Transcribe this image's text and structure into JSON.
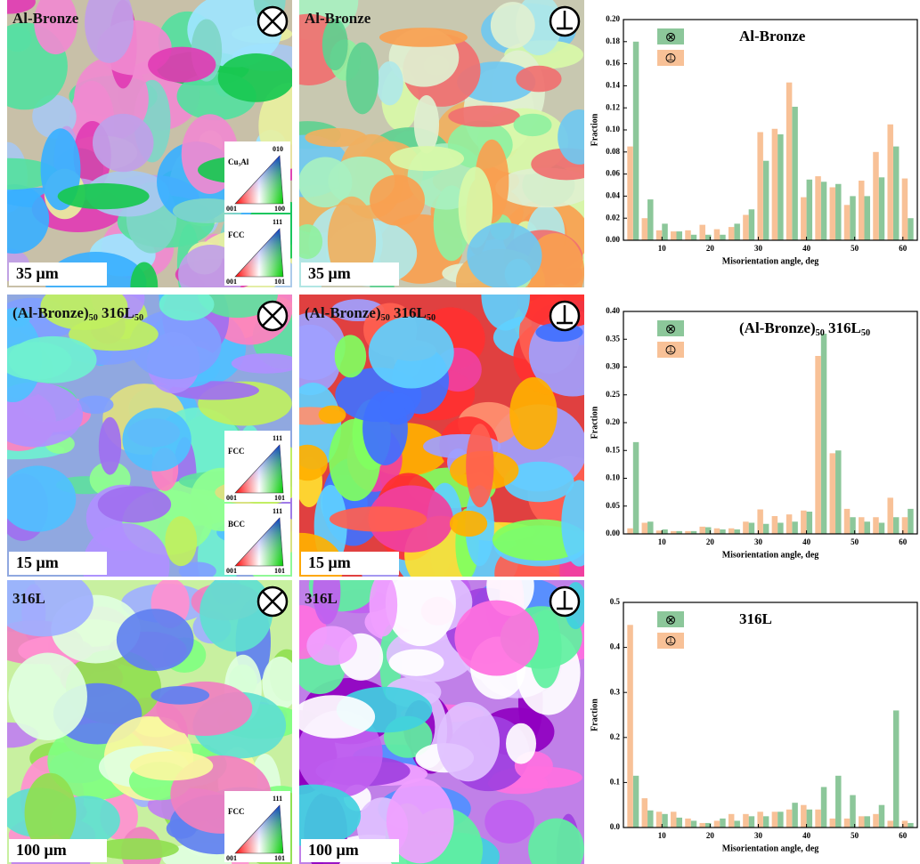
{
  "maps": [
    {
      "label": [
        "Al-Bronze"
      ],
      "scale": "35 μm",
      "keys": [
        {
          "name": [
            "Cu",
            "3",
            "Al"
          ],
          "corners": [
            "010",
            "001",
            "100"
          ]
        },
        {
          "name": [
            "FCC"
          ],
          "corners": [
            "111",
            "001",
            "101"
          ]
        }
      ]
    },
    {
      "label": [
        "Al-Bronze"
      ],
      "scale": "35 μm",
      "keys": []
    },
    {
      "label": [
        "(Al-Bronze)",
        "50",
        " 316L",
        "50"
      ],
      "scale": "15 μm",
      "keys": [
        {
          "name": [
            "FCC"
          ],
          "corners": [
            "111",
            "001",
            "101"
          ]
        },
        {
          "name": [
            "BCC"
          ],
          "corners": [
            "111",
            "001",
            "101"
          ]
        }
      ]
    },
    {
      "label": [
        "(Al-Bronze)",
        "50",
        " 316L",
        "50"
      ],
      "scale": "15 μm",
      "keys": []
    },
    {
      "label": [
        "316L"
      ],
      "scale": "100 μm",
      "keys": [
        {
          "name": [
            "FCC"
          ],
          "corners": [
            "111",
            "001",
            "101"
          ]
        }
      ]
    },
    {
      "label": [
        "316L"
      ],
      "scale": "100 μm",
      "keys": []
    }
  ],
  "chart_data": [
    {
      "type": "bar",
      "title": [
        "Al-Bronze"
      ],
      "xlabel": "Misorientation angle, deg",
      "ylabel": "Fraction",
      "x": [
        4,
        7,
        10,
        13,
        16,
        19,
        22,
        25,
        28,
        31,
        34,
        37,
        40,
        43,
        46,
        49,
        52,
        55,
        58,
        61
      ],
      "series": [
        {
          "name": "⊗",
          "color": "#8cc79a",
          "values": [
            0.18,
            0.037,
            0.015,
            0.008,
            0.005,
            0.005,
            0.005,
            0.015,
            0.028,
            0.072,
            0.096,
            0.121,
            0.055,
            0.053,
            0.051,
            0.04,
            0.04,
            0.057,
            0.085,
            0.02
          ]
        },
        {
          "name": "⦹",
          "color": "#f8c197",
          "values": [
            0.085,
            0.02,
            0.009,
            0.008,
            0.009,
            0.014,
            0.01,
            0.012,
            0.023,
            0.098,
            0.101,
            0.143,
            0.039,
            0.058,
            0.048,
            0.032,
            0.054,
            0.08,
            0.105,
            0.056
          ]
        }
      ],
      "xlim": [
        2,
        63
      ],
      "xticks": [
        10,
        20,
        30,
        40,
        50,
        60
      ],
      "ylim": [
        0,
        0.2
      ],
      "yticks": [
        {
          "value": 0,
          "label": "0.00"
        },
        0.02,
        0.04,
        0.06,
        0.08,
        {
          "value": 0.1,
          "label": "0.10"
        },
        0.12,
        0.14,
        0.16,
        0.18,
        {
          "value": 0.2,
          "label": "0.20"
        }
      ]
    },
    {
      "type": "bar",
      "title": [
        "(Al-Bronze)",
        "50",
        " 316L",
        "50"
      ],
      "xlabel": "Misorientation angle, deg",
      "ylabel": "Fraction",
      "x": [
        4,
        7,
        10,
        13,
        16,
        19,
        22,
        25,
        28,
        31,
        34,
        37,
        40,
        43,
        46,
        49,
        52,
        55,
        58,
        61
      ],
      "series": [
        {
          "name": "⊗",
          "color": "#8cc79a",
          "values": [
            0.165,
            0.022,
            0.008,
            0.005,
            0.005,
            0.012,
            0.008,
            0.008,
            0.02,
            0.018,
            0.02,
            0.022,
            0.04,
            0.36,
            0.15,
            0.03,
            0.022,
            0.02,
            0.03,
            0.045
          ]
        },
        {
          "name": "⦹",
          "color": "#f8c197",
          "values": [
            0.01,
            0.02,
            0.006,
            0.005,
            0.005,
            0.013,
            0.01,
            0.01,
            0.022,
            0.044,
            0.032,
            0.035,
            0.042,
            0.32,
            0.145,
            0.045,
            0.03,
            0.03,
            0.065,
            0.03
          ]
        }
      ],
      "xlim": [
        2,
        63
      ],
      "xticks": [
        10,
        20,
        30,
        40,
        50,
        60
      ],
      "ylim": [
        0,
        0.4
      ],
      "yticks": [
        {
          "value": 0,
          "label": "0.00"
        },
        0.05,
        {
          "value": 0.1,
          "label": "0.10"
        },
        0.15,
        {
          "value": 0.2,
          "label": "0.20"
        },
        0.25,
        {
          "value": 0.3,
          "label": "0.30"
        },
        0.35,
        {
          "value": 0.4,
          "label": "0.40"
        }
      ]
    },
    {
      "type": "bar",
      "title": [
        "316L"
      ],
      "xlabel": "Misorientation angle, deg",
      "ylabel": "Fraction",
      "x": [
        4,
        7,
        10,
        13,
        16,
        19,
        22,
        25,
        28,
        31,
        34,
        37,
        40,
        43,
        46,
        49,
        52,
        55,
        58,
        61
      ],
      "series": [
        {
          "name": "⊗",
          "color": "#8cc79a",
          "values": [
            0.115,
            0.038,
            0.03,
            0.022,
            0.015,
            0.01,
            0.02,
            0.015,
            0.025,
            0.025,
            0.035,
            0.055,
            0.04,
            0.09,
            0.115,
            0.072,
            0.025,
            0.05,
            0.26,
            0.01
          ]
        },
        {
          "name": "⦹",
          "color": "#f8c197",
          "values": [
            0.45,
            0.065,
            0.035,
            0.035,
            0.02,
            0.01,
            0.015,
            0.03,
            0.03,
            0.035,
            0.035,
            0.04,
            0.05,
            0.04,
            0.02,
            0.02,
            0.025,
            0.03,
            0.015,
            0.015
          ]
        }
      ],
      "xlim": [
        2,
        63
      ],
      "xticks": [
        10,
        20,
        30,
        40,
        50,
        60
      ],
      "ylim": [
        0,
        0.5
      ],
      "yticks": [
        {
          "value": 0,
          "label": "0.0"
        },
        0.1,
        0.2,
        0.3,
        0.4,
        0.5
      ]
    }
  ]
}
